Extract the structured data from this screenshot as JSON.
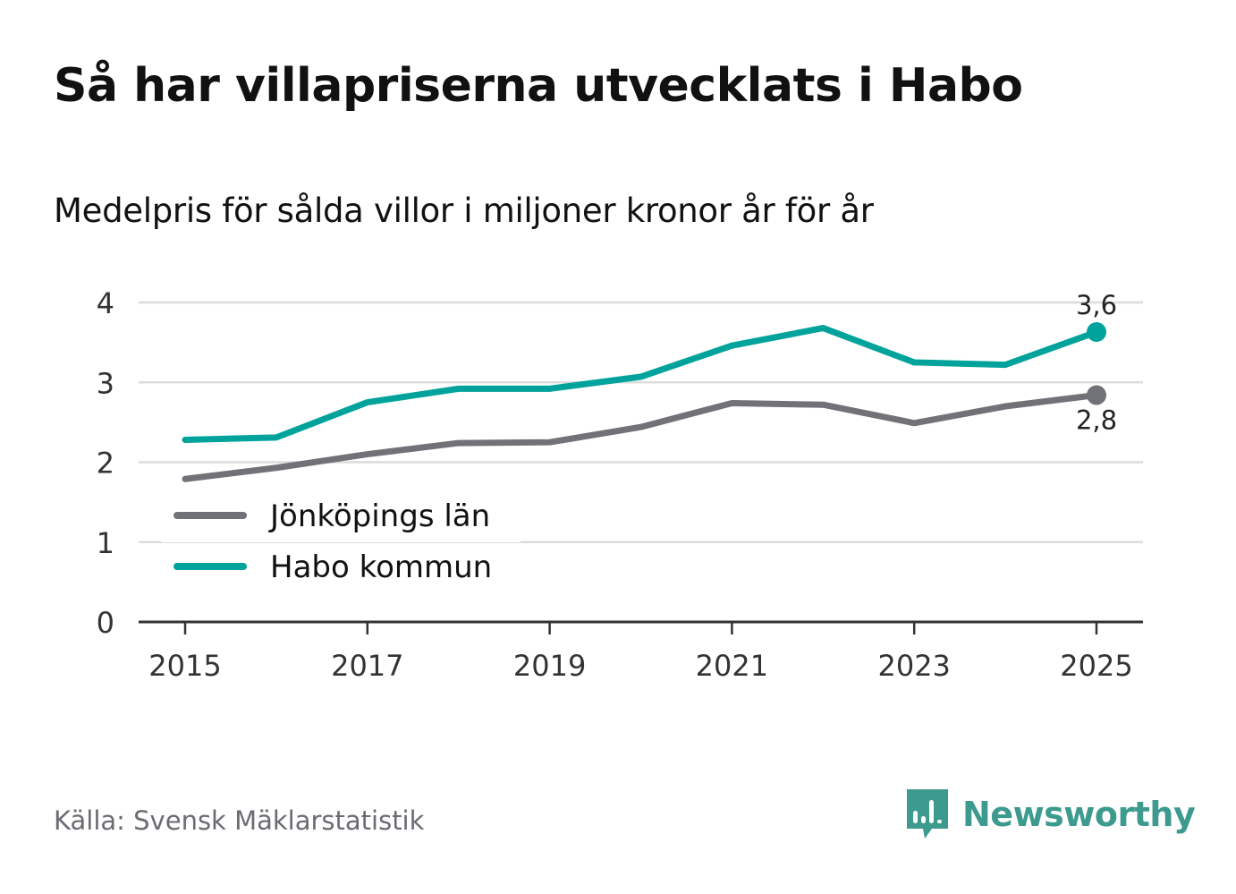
{
  "header": {
    "title": "Så har villapriserna utvecklats i Habo",
    "subtitle": "Medelpris för sålda villor i miljoner kronor år för år"
  },
  "chart_data": {
    "type": "line",
    "x": [
      2015,
      2016,
      2017,
      2018,
      2019,
      2020,
      2021,
      2022,
      2023,
      2024,
      2025
    ],
    "x_ticks": [
      2015,
      2017,
      2019,
      2021,
      2023,
      2025
    ],
    "y_ticks": [
      0,
      1,
      2,
      3,
      4
    ],
    "ylim": [
      0,
      4
    ],
    "xlabel": "",
    "ylabel": "",
    "grid": true,
    "legend_position": "bottom-left",
    "series": [
      {
        "name": "Jönköpings län",
        "color": "#717178",
        "values": [
          1.79,
          1.93,
          2.1,
          2.24,
          2.25,
          2.44,
          2.74,
          2.72,
          2.49,
          2.7,
          2.84
        ],
        "end_label": "2,8"
      },
      {
        "name": "Habo kommun",
        "color": "#00a39b",
        "values": [
          2.28,
          2.31,
          2.75,
          2.92,
          2.92,
          3.07,
          3.46,
          3.68,
          3.25,
          3.22,
          3.63
        ],
        "end_label": "3,6"
      }
    ]
  },
  "footer": {
    "source": "Källa: Svensk Mäklarstatistik",
    "brand": "Newsworthy",
    "brand_color": "#3d9a8e"
  }
}
